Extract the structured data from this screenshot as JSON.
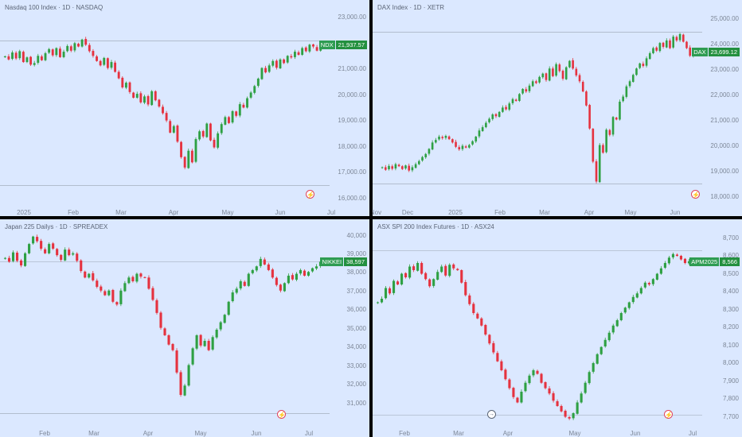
{
  "colors": {
    "up": "#2ea043",
    "down": "#e5323f",
    "bg": "#dbe8ff",
    "badge": "#23903f",
    "flash": "#e0445c"
  },
  "icons": [
    "flash-icon",
    "event-arrow-icon"
  ],
  "chart_data": [
    {
      "type": "candlestick",
      "title": "Nasdaq 100 Index · 1D · NASDAQ",
      "symbol": "NDX",
      "last_price_label": "21,937.57",
      "last_price": 21937.57,
      "ylim": [
        15750,
        23250
      ],
      "yticks": [
        23000,
        22000,
        21000,
        20000,
        19000,
        18000,
        17000,
        16000
      ],
      "ytick_labels": [
        "23,000.00",
        "22,000.00",
        "21,000.00",
        "20,000.00",
        "19,000.00",
        "18,000.00",
        "17,000.00",
        "16,000.00"
      ],
      "xticks": [
        "2025",
        "Feb",
        "Mar",
        "Apr",
        "May",
        "Jun",
        "Jul"
      ],
      "hlines": [
        22100,
        16510
      ],
      "flash_icon": "flash-icon",
      "closes": [
        21500,
        21380,
        21650,
        21420,
        21700,
        21280,
        21460,
        21180,
        21240,
        21520,
        21350,
        21620,
        21780,
        21540,
        21820,
        21470,
        21680,
        21900,
        21720,
        22010,
        21880,
        22150,
        21950,
        21700,
        21520,
        21320,
        21150,
        21440,
        21050,
        21280,
        20900,
        20650,
        20300,
        20480,
        20120,
        19900,
        20050,
        19720,
        19950,
        19640,
        20150,
        19800,
        19560,
        19300,
        19020,
        18550,
        18800,
        18200,
        17600,
        17200,
        17850,
        17400,
        18300,
        18600,
        18400,
        18900,
        18250,
        17980,
        18520,
        18880,
        19150,
        18920,
        19380,
        19200,
        19650,
        19520,
        19880,
        20100,
        20350,
        20640,
        21050,
        20880,
        21150,
        21320,
        21060,
        21380,
        21240,
        21520,
        21460,
        21680,
        21560,
        21820,
        21700,
        21950,
        21880,
        21720,
        21937.57
      ]
    },
    {
      "type": "candlestick",
      "title": "DAX Index · 1D · XETR",
      "symbol": "DAX",
      "last_price_label": "23,699.12",
      "last_price": 23699.12,
      "ylim": [
        17700,
        25300
      ],
      "yticks": [
        25000,
        24000,
        23000,
        22000,
        21000,
        20000,
        19000,
        18000
      ],
      "ytick_labels": [
        "25,000.00",
        "24,000.00",
        "23,000.00",
        "22,000.00",
        "21,000.00",
        "20,000.00",
        "19,000.00",
        "18,000.00"
      ],
      "xticks": [
        "Nov",
        "Dec",
        "2025",
        "Feb",
        "Mar",
        "Apr",
        "May",
        "Jun"
      ],
      "hlines": [
        24480,
        18520
      ],
      "flash_icon": "flash-icon",
      "closes": [
        19180,
        19080,
        19230,
        19120,
        19300,
        19220,
        19110,
        19250,
        19050,
        19180,
        19300,
        19420,
        19580,
        19700,
        19900,
        20150,
        20250,
        20380,
        20320,
        20410,
        20280,
        20150,
        19980,
        19880,
        20020,
        19950,
        20050,
        20200,
        20380,
        20620,
        20750,
        20920,
        21080,
        21250,
        21180,
        21350,
        21520,
        21450,
        21680,
        21850,
        21780,
        22050,
        22250,
        22150,
        22380,
        22550,
        22480,
        22720,
        22850,
        22600,
        23050,
        22750,
        23220,
        22950,
        22650,
        23100,
        23350,
        23050,
        22780,
        22550,
        22150,
        21600,
        20700,
        19400,
        18620,
        20050,
        19750,
        20650,
        20450,
        21150,
        21050,
        21750,
        21950,
        22350,
        22550,
        22800,
        23050,
        23250,
        23150,
        23450,
        23650,
        23850,
        23750,
        24050,
        23900,
        24150,
        23850,
        24300,
        24150,
        24400,
        24100,
        23850,
        23550,
        23699.12
      ]
    },
    {
      "type": "candlestick",
      "title": "Japan 225 Dailys · 1D · SPREADEX",
      "symbol": "NIKKEI",
      "last_price_label": "38,597",
      "last_price": 38597,
      "ylim": [
        29700,
        40450
      ],
      "yticks": [
        40000,
        39000,
        38000,
        37000,
        36000,
        35000,
        34000,
        33000,
        32000,
        31000
      ],
      "ytick_labels": [
        "40,000",
        "39,000",
        "38,000",
        "37,000",
        "36,000",
        "35,000",
        "34,000",
        "33,000",
        "32,000",
        "31,000"
      ],
      "xticks": [
        "Feb",
        "Mar",
        "Apr",
        "May",
        "Jun",
        "Jul"
      ],
      "hlines": [
        38600,
        30450
      ],
      "flash_icon": "flash-icon",
      "closes": [
        38800,
        38600,
        39100,
        38650,
        38400,
        39050,
        39550,
        39950,
        39700,
        39300,
        39050,
        39550,
        39300,
        38950,
        38700,
        39250,
        38950,
        39050,
        38650,
        38100,
        37750,
        37950,
        37600,
        37250,
        37050,
        36800,
        37050,
        36450,
        36300,
        37050,
        37450,
        37750,
        37550,
        37950,
        37800,
        37750,
        37150,
        36550,
        35850,
        35050,
        34650,
        34150,
        33850,
        32650,
        31450,
        31950,
        33050,
        33950,
        34650,
        34100,
        34350,
        33850,
        34550,
        34950,
        35350,
        35750,
        36450,
        36950,
        37150,
        37550,
        37300,
        37950,
        38150,
        38350,
        38750,
        38450,
        38150,
        37750,
        37350,
        37050,
        37450,
        37850,
        37650,
        37950,
        38150,
        37850,
        38050,
        38250,
        38350,
        38597
      ]
    },
    {
      "type": "candlestick",
      "title": "ASX SPI 200 Index Futures · 1D · ASX24",
      "symbol": "APM2025",
      "last_price_label": "8,566",
      "last_price": 8566,
      "ylim": [
        7640,
        8760
      ],
      "yticks": [
        8700,
        8600,
        8500,
        8400,
        8300,
        8200,
        8100,
        8000,
        7900,
        7800,
        7700
      ],
      "ytick_labels": [
        "8,700",
        "8,600",
        "8,500",
        "8,400",
        "8,300",
        "8,200",
        "8,100",
        "8,000",
        "7,900",
        "7,800",
        "7,700"
      ],
      "xticks": [
        "Feb",
        "Mar",
        "Apr",
        "May",
        "Jun",
        "Jul"
      ],
      "hlines": [
        8630,
        7710
      ],
      "flash_icon": "flash-icon",
      "event_icon": "event-arrow-icon",
      "closes": [
        8340,
        8360,
        8420,
        8390,
        8460,
        8440,
        8500,
        8480,
        8540,
        8520,
        8560,
        8500,
        8470,
        8430,
        8470,
        8510,
        8540,
        8490,
        8550,
        8530,
        8520,
        8450,
        8380,
        8330,
        8280,
        8250,
        8210,
        8160,
        8110,
        8060,
        8010,
        7960,
        7910,
        7860,
        7810,
        7780,
        7840,
        7890,
        7930,
        7960,
        7940,
        7890,
        7860,
        7830,
        7790,
        7760,
        7730,
        7700,
        7690,
        7720,
        7780,
        7830,
        7890,
        7950,
        8000,
        8050,
        8090,
        8130,
        8170,
        8210,
        8240,
        8280,
        8310,
        8340,
        8370,
        8390,
        8420,
        8450,
        8440,
        8470,
        8500,
        8530,
        8560,
        8590,
        8610,
        8600,
        8580,
        8560,
        8570,
        8566
      ]
    }
  ]
}
